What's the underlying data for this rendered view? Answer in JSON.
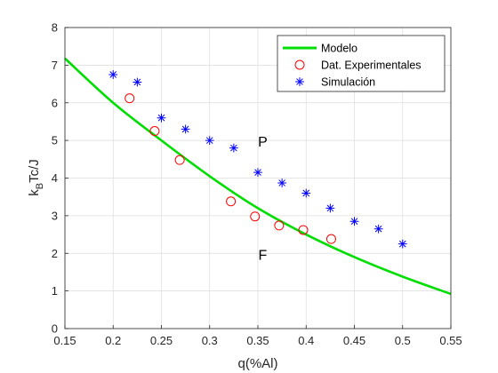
{
  "chart_data": {
    "type": "scatter",
    "xlabel": "q(%Al)",
    "ylabel": {
      "prefix": "k",
      "subscript": "B",
      "suffix": "Tc/J"
    },
    "xlim": [
      0.15,
      0.55
    ],
    "ylim": [
      0,
      8
    ],
    "x_ticks": [
      0.15,
      0.2,
      0.25,
      0.3,
      0.35,
      0.4,
      0.45,
      0.5,
      0.55
    ],
    "x_tick_labels": [
      "0.15",
      "0.2",
      "0.25",
      "0.3",
      "0.35",
      "0.4",
      "0.45",
      "0.5",
      "0.55"
    ],
    "y_ticks": [
      0,
      1,
      2,
      3,
      4,
      5,
      6,
      7,
      8
    ],
    "y_tick_labels": [
      "0",
      "1",
      "2",
      "3",
      "4",
      "5",
      "6",
      "7",
      "8"
    ],
    "grid": true,
    "legend_position": "top-right",
    "series": [
      {
        "name": "Modelo",
        "style": "line",
        "color": "#00dd00",
        "x": [
          0.15,
          0.2,
          0.25,
          0.3,
          0.35,
          0.4,
          0.45,
          0.5,
          0.55
        ],
        "y": [
          7.18,
          6.0,
          5.0,
          4.05,
          3.2,
          2.5,
          1.9,
          1.38,
          0.92
        ]
      },
      {
        "name": "Dat. Experimentales",
        "style": "circle",
        "color": "#ff0000",
        "x": [
          0.217,
          0.243,
          0.269,
          0.322,
          0.347,
          0.372,
          0.397,
          0.426
        ],
        "y": [
          6.12,
          5.25,
          4.48,
          3.38,
          2.98,
          2.74,
          2.62,
          2.38
        ]
      },
      {
        "name": "Simulación",
        "style": "asterisk",
        "color": "#0000ff",
        "x": [
          0.2,
          0.225,
          0.25,
          0.275,
          0.3,
          0.325,
          0.35,
          0.375,
          0.4,
          0.425,
          0.45,
          0.475,
          0.5
        ],
        "y": [
          6.75,
          6.55,
          5.6,
          5.3,
          5.0,
          4.8,
          4.15,
          3.87,
          3.6,
          3.2,
          2.85,
          2.65,
          2.25
        ]
      }
    ],
    "annotations": [
      {
        "text": "P",
        "x": 0.355,
        "y": 4.98
      },
      {
        "text": "F",
        "x": 0.355,
        "y": 1.97
      }
    ]
  }
}
